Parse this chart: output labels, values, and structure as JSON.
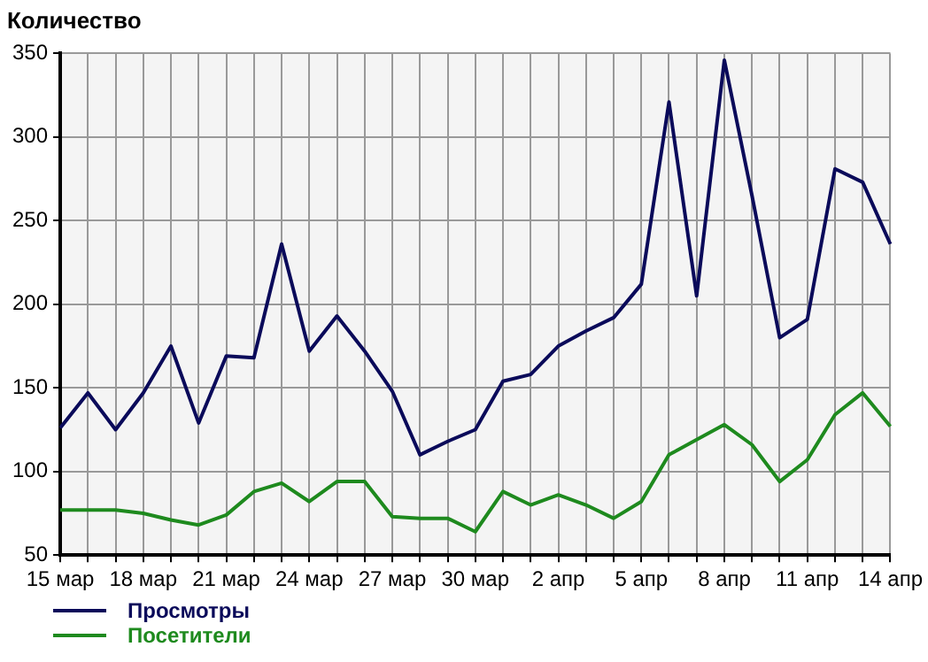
{
  "chart_data": {
    "type": "line",
    "ylabel": "Количество",
    "categories": [
      "15 мар",
      null,
      null,
      "18 мар",
      null,
      null,
      "21 мар",
      null,
      null,
      "24 мар",
      null,
      null,
      "27 мар",
      null,
      null,
      "30 мар",
      null,
      null,
      "2 апр",
      null,
      null,
      "5 апр",
      null,
      null,
      "8 апр",
      null,
      null,
      "11 апр",
      null,
      null,
      "14 апр"
    ],
    "series": [
      {
        "name": "Просмотры",
        "color": "#0a0a5a",
        "values": [
          126,
          147,
          125,
          147,
          175,
          129,
          169,
          168,
          236,
          172,
          193,
          172,
          148,
          110,
          118,
          125,
          154,
          158,
          175,
          184,
          192,
          212,
          321,
          205,
          346,
          265,
          180,
          191,
          281,
          273,
          236
        ]
      },
      {
        "name": "Посетители",
        "color": "#1e8a1e",
        "values": [
          77,
          77,
          77,
          75,
          71,
          68,
          74,
          88,
          93,
          82,
          94,
          94,
          73,
          72,
          72,
          64,
          88,
          80,
          86,
          80,
          72,
          82,
          110,
          119,
          128,
          116,
          94,
          107,
          134,
          147,
          127
        ]
      }
    ],
    "ylim": [
      50,
      350
    ],
    "yticks": [
      50,
      100,
      150,
      200,
      250,
      300,
      350
    ],
    "grid": true,
    "legend": "bottom left",
    "marker": "none",
    "line_style": "solid"
  }
}
